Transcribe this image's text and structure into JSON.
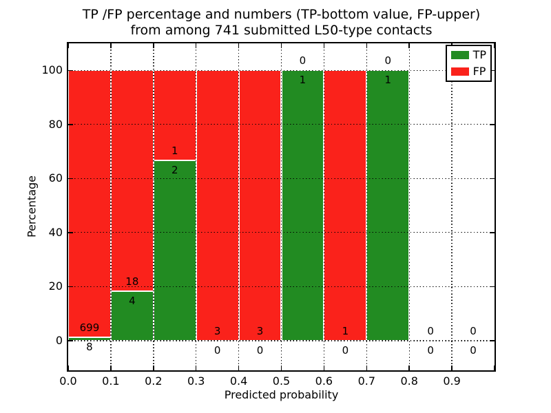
{
  "chart_data": {
    "type": "bar",
    "variant": "stacked-percentage-histogram",
    "title": "TP /FP percentage and numbers (TP-bottom value, FP-upper) from among 741 submitted L50-type contacts",
    "title_lines": [
      "TP /FP percentage and numbers (TP-bottom value, FP-upper)",
      "from among 741 submitted L50-type contacts"
    ],
    "xlabel": "Predicted probability",
    "ylabel": "Percentage",
    "xlim": [
      0.0,
      1.0
    ],
    "ylim": [
      -11,
      110
    ],
    "x_ticks": [
      "0.0",
      "0.1",
      "0.2",
      "0.3",
      "0.4",
      "0.5",
      "0.6",
      "0.7",
      "0.8",
      "0.9"
    ],
    "y_ticks": [
      0,
      20,
      40,
      60,
      80,
      100
    ],
    "grid": "dotted",
    "total_contacts": 741,
    "label_rule": "FP count printed above TP segment top, TP count printed below it",
    "colors": {
      "tp": "#228b22",
      "fp": "#fa221b",
      "bar_edge": "#ffffff",
      "grid": "#000000",
      "text": "#000000"
    },
    "legend": {
      "position": "upper-right",
      "entries": [
        {
          "label": "TP",
          "color": "#228b22"
        },
        {
          "label": "FP",
          "color": "#fa221b"
        }
      ]
    },
    "bins": [
      {
        "x_range": [
          0.0,
          0.1
        ],
        "tp": 8,
        "fp": 699
      },
      {
        "x_range": [
          0.1,
          0.2
        ],
        "tp": 4,
        "fp": 18
      },
      {
        "x_range": [
          0.2,
          0.3
        ],
        "tp": 2,
        "fp": 1
      },
      {
        "x_range": [
          0.3,
          0.4
        ],
        "tp": 0,
        "fp": 3
      },
      {
        "x_range": [
          0.4,
          0.5
        ],
        "tp": 0,
        "fp": 3
      },
      {
        "x_range": [
          0.5,
          0.6
        ],
        "tp": 1,
        "fp": 0
      },
      {
        "x_range": [
          0.6,
          0.7
        ],
        "tp": 0,
        "fp": 1
      },
      {
        "x_range": [
          0.7,
          0.8
        ],
        "tp": 1,
        "fp": 0
      },
      {
        "x_range": [
          0.8,
          0.9
        ],
        "tp": 0,
        "fp": 0
      },
      {
        "x_range": [
          0.9,
          1.0
        ],
        "tp": 0,
        "fp": 0
      }
    ]
  }
}
